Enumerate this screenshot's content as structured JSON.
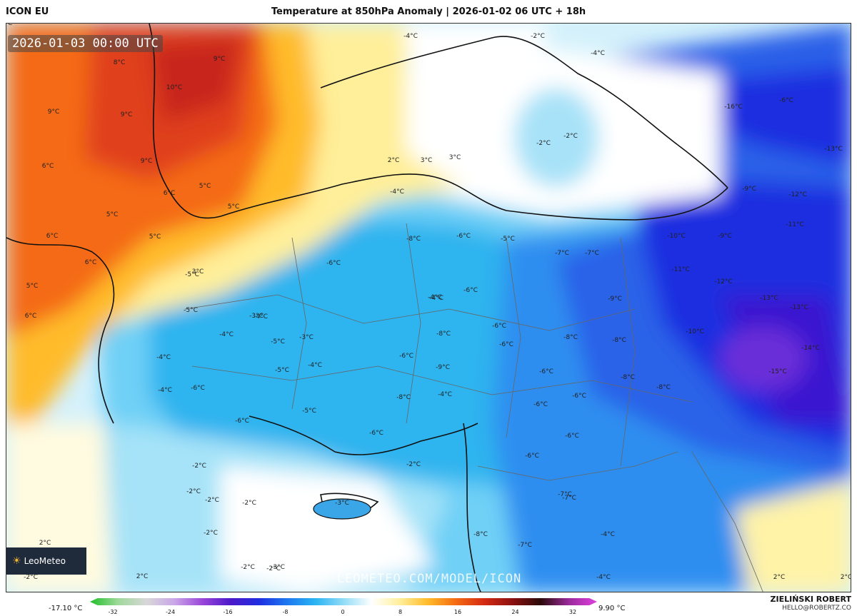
{
  "header": {
    "model": "ICON EU",
    "title": "Temperature at 850hPa Anomaly | 2026-01-02 06 UTC + 18h"
  },
  "map": {
    "valid_time": "2026-01-03 00:00 UTC",
    "watermark": "LEOMETEO.COM/MODEL/ICON",
    "logo": "LeoMeteo",
    "labels": [
      {
        "text": "9°C"
      },
      {
        "text": "8°C"
      },
      {
        "text": "10°C"
      },
      {
        "text": "9°C"
      },
      {
        "text": "9°C"
      },
      {
        "text": "9°C"
      },
      {
        "text": "6°C"
      },
      {
        "text": "6°C"
      },
      {
        "text": "5°C"
      },
      {
        "text": "5°C"
      },
      {
        "text": "5°C"
      },
      {
        "text": "6°C"
      },
      {
        "text": "5°C"
      },
      {
        "text": "6°C"
      },
      {
        "text": "5°C"
      },
      {
        "text": "6°C"
      },
      {
        "text": "3°C"
      },
      {
        "text": "2°C"
      },
      {
        "text": "3°C"
      },
      {
        "text": "3°C"
      },
      {
        "text": "-4°C"
      },
      {
        "text": "-2°C"
      },
      {
        "text": "-4°C"
      },
      {
        "text": "-2°C"
      },
      {
        "text": "-2°C"
      },
      {
        "text": "-16°C"
      },
      {
        "text": "-6°C"
      },
      {
        "text": "-13°C"
      },
      {
        "text": "-9°C"
      },
      {
        "text": "-12°C"
      },
      {
        "text": "-4°C"
      },
      {
        "text": "-8°C"
      },
      {
        "text": "-6°C"
      },
      {
        "text": "-5°C"
      },
      {
        "text": "-11°C"
      },
      {
        "text": "-10°C"
      },
      {
        "text": "-9°C"
      },
      {
        "text": "-7°C"
      },
      {
        "text": "-7°C"
      },
      {
        "text": "-6°C"
      },
      {
        "text": "-11°C"
      },
      {
        "text": "-12°C"
      },
      {
        "text": "-5°C"
      },
      {
        "text": "-4°C"
      },
      {
        "text": "-6°C"
      },
      {
        "text": "-4°C"
      },
      {
        "text": "-9°C"
      },
      {
        "text": "-13°C"
      },
      {
        "text": "-13°C"
      },
      {
        "text": "-5°C"
      },
      {
        "text": "-3°C"
      },
      {
        "text": "-4°C"
      },
      {
        "text": "-8°C"
      },
      {
        "text": "-6°C"
      },
      {
        "text": "-8°C"
      },
      {
        "text": "-8°C"
      },
      {
        "text": "-10°C"
      },
      {
        "text": "-4°C"
      },
      {
        "text": "-3°C"
      },
      {
        "text": "-6°C"
      },
      {
        "text": "-9°C"
      },
      {
        "text": "-14°C"
      },
      {
        "text": "-5°C"
      },
      {
        "text": "-4°C"
      },
      {
        "text": "-6°C"
      },
      {
        "text": "-15°C"
      },
      {
        "text": "-5°C"
      },
      {
        "text": "-4°C"
      },
      {
        "text": "-8°C"
      },
      {
        "text": "-4°C"
      },
      {
        "text": "-8°C"
      },
      {
        "text": "-6°C"
      },
      {
        "text": "-8°C"
      },
      {
        "text": "-6°C"
      },
      {
        "text": "-5°C"
      },
      {
        "text": "-6°C"
      },
      {
        "text": "-6°C"
      },
      {
        "text": "-6°C"
      },
      {
        "text": "-6°C"
      },
      {
        "text": "-4°C"
      },
      {
        "text": "-6°C"
      },
      {
        "text": "-2°C"
      },
      {
        "text": "-2°C"
      },
      {
        "text": "-6°C"
      },
      {
        "text": "-2°C"
      },
      {
        "text": "-2°C"
      },
      {
        "text": "-2°C"
      },
      {
        "text": "-3°C"
      },
      {
        "text": "-3°C"
      },
      {
        "text": "-7°C"
      },
      {
        "text": "-2°C"
      },
      {
        "text": "-2°C"
      },
      {
        "text": "-7°C"
      },
      {
        "text": "-2°C"
      },
      {
        "text": "-8°C"
      },
      {
        "text": "-4°C"
      },
      {
        "text": "-7°C"
      },
      {
        "text": "2°C"
      },
      {
        "text": "2°C"
      },
      {
        "text": "-2°C"
      },
      {
        "text": "2°C"
      },
      {
        "text": "-4°C"
      },
      {
        "text": "2°C"
      },
      {
        "text": "2°C"
      }
    ]
  },
  "colorbar": {
    "min_label": "-17.10 °C",
    "max_label": "9.90 °C",
    "ticks": [
      "-32",
      "-24",
      "-16",
      "-8",
      "0",
      "8",
      "16",
      "24",
      "32"
    ],
    "colors": [
      "#1fbf2a",
      "#9fd99a",
      "#d8d8d8",
      "#c9a6e8",
      "#9a45d8",
      "#4b18c9",
      "#1f2ee0",
      "#1d78f0",
      "#2ab4f2",
      "#92dcf6",
      "#ffffff",
      "#ffef9a",
      "#ffbb2a",
      "#f46a12",
      "#d42a12",
      "#8c1010",
      "#2a0a0a",
      "#9a2a9a",
      "#e040e0"
    ]
  },
  "footer": {
    "author": "ZIELIŃSKI ROBERT",
    "email": "HELLO@ROBERTZ.CO"
  }
}
